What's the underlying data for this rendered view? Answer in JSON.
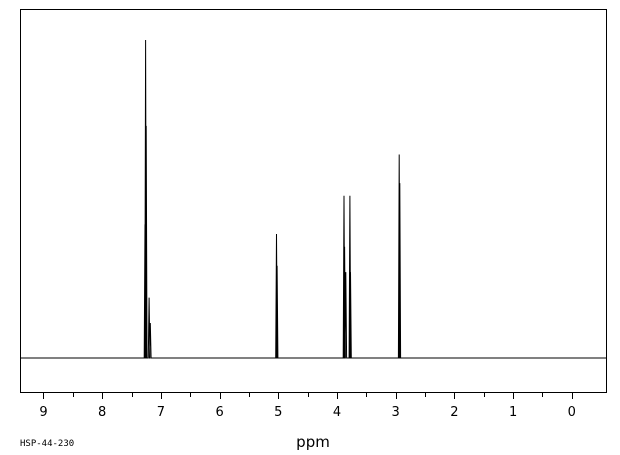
{
  "chart_data": {
    "type": "line",
    "title": "",
    "xlabel": "ppm",
    "ylabel": "",
    "xlim": [
      9.4,
      -0.6
    ],
    "x_reversed": true,
    "ylim": [
      0,
      100
    ],
    "grid": false,
    "legend": "none",
    "x_ticks": [
      "9",
      "8",
      "7",
      "6",
      "5",
      "4",
      "3",
      "2",
      "1",
      "0"
    ],
    "x_tick_values": [
      9,
      8,
      7,
      6,
      5,
      4,
      3,
      2,
      1,
      0
    ],
    "baseline": 0,
    "peaks": [
      {
        "ppm": 7.26,
        "height": 100
      },
      {
        "ppm": 7.25,
        "height": 73
      },
      {
        "ppm": 7.27,
        "height": 42
      },
      {
        "ppm": 7.2,
        "height": 19
      },
      {
        "ppm": 7.18,
        "height": 11
      },
      {
        "ppm": 5.03,
        "height": 39
      },
      {
        "ppm": 5.02,
        "height": 29
      },
      {
        "ppm": 3.88,
        "height": 51
      },
      {
        "ppm": 3.87,
        "height": 35
      },
      {
        "ppm": 3.85,
        "height": 27
      },
      {
        "ppm": 3.78,
        "height": 51
      },
      {
        "ppm": 3.77,
        "height": 27
      },
      {
        "ppm": 2.94,
        "height": 64
      },
      {
        "ppm": 2.93,
        "height": 55
      }
    ]
  },
  "footer": {
    "sample_code": "HSP-44-230"
  },
  "colors": {
    "line": "#000000",
    "background": "#ffffff"
  }
}
